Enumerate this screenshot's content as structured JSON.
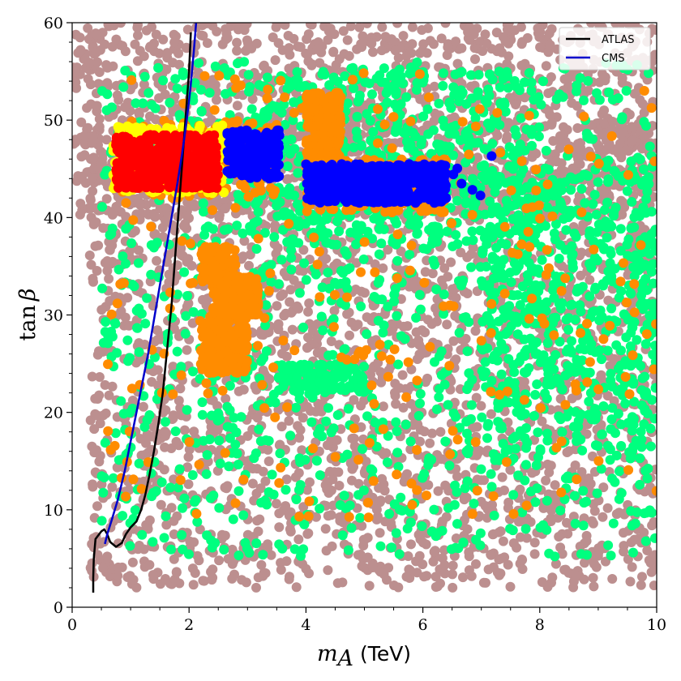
{
  "chart_data": {
    "type": "scatter",
    "xlabel": "m_A (TeV)",
    "xlabel_math": "m",
    "xlabel_sub": "A",
    "xlabel_unit": "(TeV)",
    "ylabel": "tan β",
    "ylabel_main": "tan",
    "ylabel_greek": "β",
    "xlim": [
      0,
      10
    ],
    "ylim": [
      0,
      60
    ],
    "x_ticks": [
      "0",
      "2",
      "4",
      "6",
      "8",
      "10"
    ],
    "y_ticks": [
      "0",
      "10",
      "20",
      "30",
      "40",
      "50",
      "60"
    ],
    "grid": false,
    "legend_position": "top-right",
    "legend": [
      {
        "label": "ATLAS",
        "color": "#000000"
      },
      {
        "label": "CMS",
        "color": "#0000cc"
      }
    ],
    "scatter_colors": {
      "brown": "#bc8f8f",
      "green": "#00ff7f",
      "orange": "#ff8c00",
      "blue": "#0000ff",
      "yellow": "#ffff00",
      "red": "#ff0000"
    },
    "scatter_regions": [
      {
        "name": "brown-top-band",
        "color": "brown",
        "x": [
          0,
          10
        ],
        "y": [
          40,
          60
        ],
        "n": 1400
      },
      {
        "name": "brown-full",
        "color": "brown",
        "x": [
          0.3,
          10
        ],
        "y": [
          2,
          50
        ],
        "n": 2600
      },
      {
        "name": "green-main",
        "color": "green",
        "x": [
          0.5,
          10
        ],
        "y": [
          5,
          56
        ],
        "n": 1100
      },
      {
        "name": "green-right",
        "color": "green",
        "x": [
          7,
          10
        ],
        "y": [
          15,
          45
        ],
        "n": 500
      },
      {
        "name": "green-mid-band",
        "color": "green",
        "x": [
          3,
          8
        ],
        "y": [
          37,
          55
        ],
        "n": 400
      },
      {
        "name": "green-low-left",
        "color": "green",
        "x": [
          3.5,
          5
        ],
        "y": [
          22,
          25
        ],
        "n": 120
      },
      {
        "name": "orange-scatter",
        "color": "orange",
        "x": [
          0.6,
          10
        ],
        "y": [
          9,
          55
        ],
        "n": 260
      },
      {
        "name": "orange-cluster-a",
        "color": "orange",
        "x": [
          2.2,
          3.0
        ],
        "y": [
          24,
          30
        ],
        "n": 220
      },
      {
        "name": "orange-cluster-b",
        "color": "orange",
        "x": [
          2.4,
          3.2
        ],
        "y": [
          30,
          34
        ],
        "n": 180
      },
      {
        "name": "orange-cluster-c",
        "color": "orange",
        "x": [
          2.2,
          2.8
        ],
        "y": [
          33,
          37
        ],
        "n": 120
      },
      {
        "name": "orange-cluster-d",
        "color": "orange",
        "x": [
          4.0,
          4.6
        ],
        "y": [
          45,
          53
        ],
        "n": 200
      },
      {
        "name": "orange-band",
        "color": "orange",
        "x": [
          4.0,
          6.4
        ],
        "y": [
          40.5,
          46
        ],
        "n": 300
      },
      {
        "name": "orange-band-left",
        "color": "orange",
        "x": [
          0.8,
          3.5
        ],
        "y": [
          42,
          50
        ],
        "n": 200
      },
      {
        "name": "yellow-halo",
        "color": "yellow",
        "x": [
          0.7,
          2.6
        ],
        "y": [
          42.5,
          49.5
        ],
        "n": 220
      },
      {
        "name": "red-cluster",
        "color": "red",
        "x": [
          0.75,
          2.5
        ],
        "y": [
          43,
          48.5
        ],
        "n": 480
      },
      {
        "name": "blue-cluster-a",
        "color": "blue",
        "x": [
          2.65,
          3.55
        ],
        "y": [
          44,
          49
        ],
        "n": 200
      },
      {
        "name": "blue-cluster-b",
        "color": "blue",
        "x": [
          4.0,
          6.4
        ],
        "y": [
          41.5,
          45.5
        ],
        "n": 520
      },
      {
        "name": "blue-scattered",
        "color": "blue",
        "x": [
          6.0,
          7.2
        ],
        "y": [
          42,
          47
        ],
        "n": 8
      }
    ],
    "series": [
      {
        "name": "ATLAS",
        "color": "#000000",
        "points": [
          [
            0.36,
            1.5
          ],
          [
            0.36,
            3
          ],
          [
            0.37,
            5
          ],
          [
            0.4,
            7
          ],
          [
            0.5,
            7.8
          ],
          [
            0.55,
            8
          ],
          [
            0.6,
            7.5
          ],
          [
            0.65,
            6.7
          ],
          [
            0.75,
            6.2
          ],
          [
            0.85,
            6.6
          ],
          [
            0.92,
            7.5
          ],
          [
            1.0,
            8.2
          ],
          [
            1.1,
            8.8
          ],
          [
            1.18,
            10
          ],
          [
            1.25,
            11.5
          ],
          [
            1.32,
            13.5
          ],
          [
            1.4,
            16
          ],
          [
            1.48,
            19
          ],
          [
            1.55,
            22
          ],
          [
            1.6,
            25
          ],
          [
            1.65,
            28
          ],
          [
            1.7,
            31
          ],
          [
            1.75,
            35
          ],
          [
            1.8,
            39
          ],
          [
            1.85,
            43
          ],
          [
            1.9,
            47
          ],
          [
            1.95,
            51
          ],
          [
            2.0,
            55
          ],
          [
            2.03,
            59
          ]
        ]
      },
      {
        "name": "CMS",
        "color": "#0000cc",
        "points": [
          [
            0.56,
            6.5
          ],
          [
            0.6,
            7.5
          ],
          [
            0.68,
            9
          ],
          [
            0.78,
            11
          ],
          [
            0.9,
            14
          ],
          [
            1.0,
            17
          ],
          [
            1.1,
            20
          ],
          [
            1.2,
            23
          ],
          [
            1.3,
            26
          ],
          [
            1.4,
            29.5
          ],
          [
            1.5,
            33
          ],
          [
            1.6,
            36.5
          ],
          [
            1.7,
            40
          ],
          [
            1.8,
            43.5
          ],
          [
            1.88,
            46.5
          ],
          [
            1.95,
            49.5
          ],
          [
            2.02,
            53
          ],
          [
            2.08,
            57
          ],
          [
            2.12,
            60
          ]
        ]
      }
    ]
  }
}
